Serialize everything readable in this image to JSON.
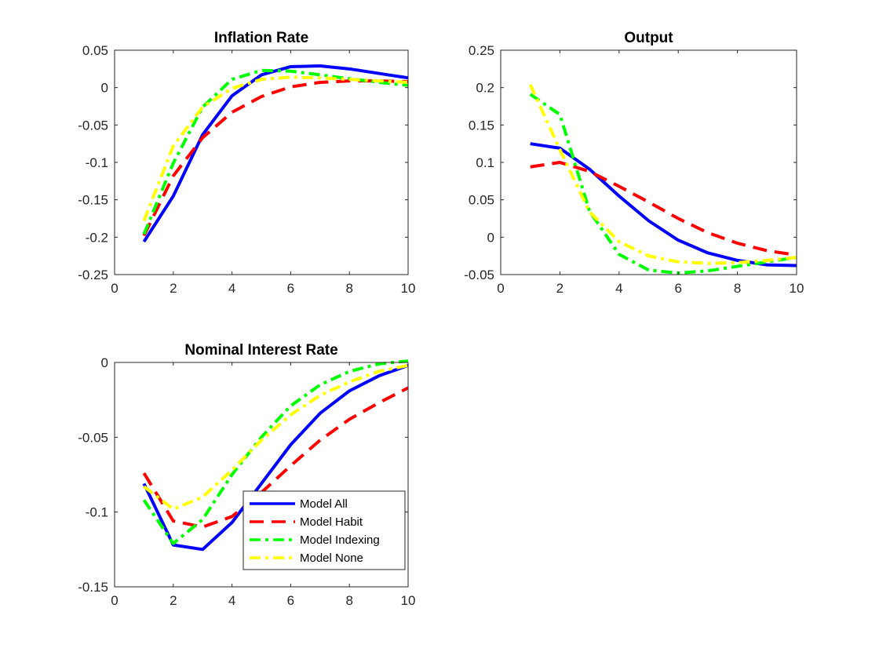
{
  "chart_data": [
    {
      "type": "line",
      "title": "Inflation Rate",
      "xlim": [
        0,
        10
      ],
      "ylim": [
        -0.25,
        0.05
      ],
      "xticks": [
        "0",
        "2",
        "4",
        "6",
        "8",
        "10"
      ],
      "yticks": [
        "-0.25",
        "-0.2",
        "-0.15",
        "-0.1",
        "-0.05",
        "0",
        "0.05"
      ],
      "x": [
        1,
        2,
        3,
        4,
        5,
        6,
        7,
        8,
        9,
        10
      ],
      "series": [
        {
          "name": "Model All",
          "color": "#0000FF",
          "style": "solid",
          "values": [
            -0.206,
            -0.145,
            -0.063,
            -0.011,
            0.017,
            0.028,
            0.029,
            0.025,
            0.019,
            0.013
          ]
        },
        {
          "name": "Model Habit",
          "color": "#FF0000",
          "style": "dashed",
          "values": [
            -0.198,
            -0.118,
            -0.067,
            -0.033,
            -0.012,
            0.001,
            0.007,
            0.009,
            0.009,
            0.008
          ]
        },
        {
          "name": "Model Indexing",
          "color": "#00FF00",
          "style": "dashdot",
          "values": [
            -0.196,
            -0.101,
            -0.026,
            0.011,
            0.023,
            0.022,
            0.017,
            0.012,
            0.007,
            0.003
          ]
        },
        {
          "name": "Model None",
          "color": "#FFFF00",
          "style": "dashdot",
          "values": [
            -0.178,
            -0.078,
            -0.026,
            -0.001,
            0.011,
            0.014,
            0.013,
            0.011,
            0.009,
            0.007
          ]
        }
      ]
    },
    {
      "type": "line",
      "title": "Output",
      "xlim": [
        0,
        10
      ],
      "ylim": [
        -0.05,
        0.25
      ],
      "xticks": [
        "0",
        "2",
        "4",
        "6",
        "8",
        "10"
      ],
      "yticks": [
        "-0.05",
        "0",
        "0.05",
        "0.1",
        "0.15",
        "0.2",
        "0.25"
      ],
      "x": [
        1,
        2,
        3,
        4,
        5,
        6,
        7,
        8,
        9,
        10
      ],
      "series": [
        {
          "name": "Model All",
          "color": "#0000FF",
          "style": "solid",
          "values": [
            0.125,
            0.119,
            0.091,
            0.055,
            0.022,
            -0.004,
            -0.021,
            -0.031,
            -0.037,
            -0.038
          ]
        },
        {
          "name": "Model Habit",
          "color": "#FF0000",
          "style": "dashed",
          "values": [
            0.094,
            0.1,
            0.088,
            0.068,
            0.047,
            0.025,
            0.006,
            -0.008,
            -0.018,
            -0.024
          ]
        },
        {
          "name": "Model Indexing",
          "color": "#00FF00",
          "style": "dashdot",
          "values": [
            0.191,
            0.164,
            0.035,
            -0.023,
            -0.044,
            -0.048,
            -0.045,
            -0.039,
            -0.033,
            -0.027
          ]
        },
        {
          "name": "Model None",
          "color": "#FFFF00",
          "style": "dashdot",
          "values": [
            0.204,
            0.117,
            0.034,
            -0.006,
            -0.025,
            -0.033,
            -0.035,
            -0.034,
            -0.031,
            -0.027
          ]
        }
      ]
    },
    {
      "type": "line",
      "title": "Nominal Interest Rate",
      "xlim": [
        0,
        10
      ],
      "ylim": [
        -0.15,
        0
      ],
      "xticks": [
        "0",
        "2",
        "4",
        "6",
        "8",
        "10"
      ],
      "yticks": [
        "-0.15",
        "-0.1",
        "-0.05",
        "0"
      ],
      "x": [
        1,
        2,
        3,
        4,
        5,
        6,
        7,
        8,
        9,
        10
      ],
      "legend": {
        "placement": "bottom-right",
        "entries": [
          "Model All",
          "Model Habit",
          "Model Indexing",
          "Model None"
        ]
      },
      "series": [
        {
          "name": "Model All",
          "color": "#0000FF",
          "style": "solid",
          "values": [
            -0.081,
            -0.122,
            -0.125,
            -0.107,
            -0.081,
            -0.055,
            -0.034,
            -0.019,
            -0.009,
            -0.002
          ]
        },
        {
          "name": "Model Habit",
          "color": "#FF0000",
          "style": "dashed",
          "values": [
            -0.074,
            -0.106,
            -0.11,
            -0.103,
            -0.087,
            -0.069,
            -0.052,
            -0.038,
            -0.027,
            -0.017
          ]
        },
        {
          "name": "Model Indexing",
          "color": "#00FF00",
          "style": "dashdot",
          "values": [
            -0.092,
            -0.121,
            -0.105,
            -0.075,
            -0.05,
            -0.029,
            -0.015,
            -0.006,
            -0.001,
            0.001
          ]
        },
        {
          "name": "Model None",
          "color": "#FFFF00",
          "style": "dashdot",
          "values": [
            -0.083,
            -0.098,
            -0.09,
            -0.072,
            -0.052,
            -0.035,
            -0.022,
            -0.013,
            -0.006,
            -0.002
          ]
        }
      ]
    }
  ]
}
